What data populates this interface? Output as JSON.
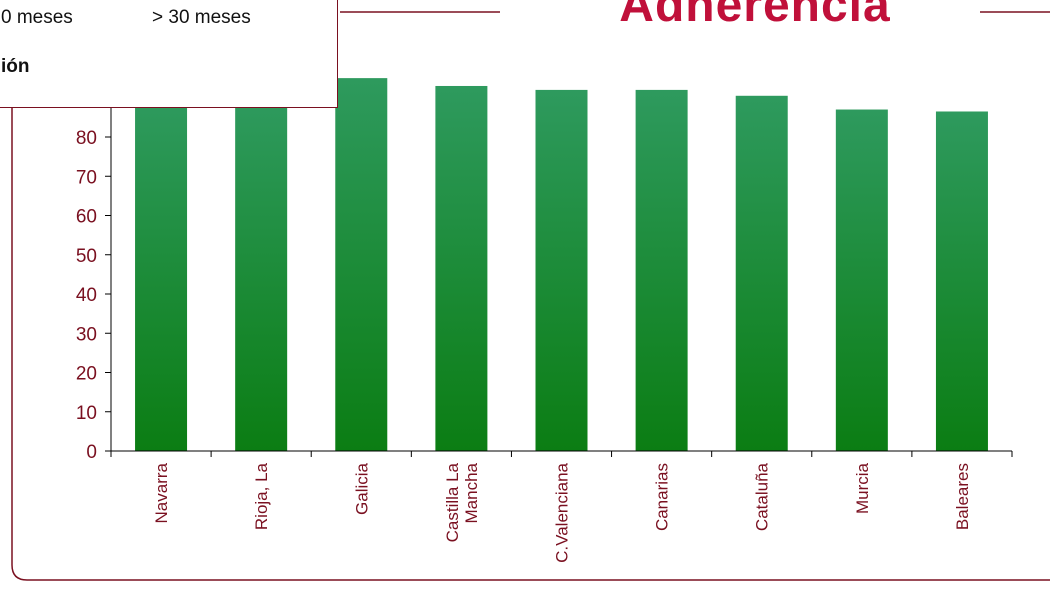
{
  "page": {
    "title": "Adherencia",
    "legend_fragment_1": "0 meses",
    "legend_fragment_2": "> 30 meses",
    "legend_fragment_3": "ión"
  },
  "colors": {
    "title": "#c0103a",
    "frame": "#7a1020",
    "axis_text": "#7a1020",
    "bar_light": "#2e9a5e",
    "bar_dark": "#0b7d13"
  },
  "chart_data": {
    "type": "bar",
    "title": "Adherencia",
    "categories": [
      "Navarra",
      "Rioja, La",
      "Galicia",
      "Castilla La Mancha",
      "C.Valenciana",
      "Canarias",
      "Cataluña",
      "Murcia",
      "Baleares"
    ],
    "category_labels": [
      [
        "Navarra"
      ],
      [
        "Rioja, La"
      ],
      [
        "Galicia"
      ],
      [
        "Castilla La",
        "Mancha"
      ],
      [
        "C.Valenciana"
      ],
      [
        "Canarias"
      ],
      [
        "Cataluña"
      ],
      [
        "Murcia"
      ],
      [
        "Baleares"
      ]
    ],
    "values": [
      89,
      89,
      95,
      93,
      92,
      92,
      90.5,
      87,
      86.5
    ],
    "y_ticks": [
      0,
      10,
      20,
      30,
      40,
      50,
      60,
      70,
      80
    ],
    "ylim": [
      0,
      100
    ],
    "xlabel": "",
    "ylabel": "",
    "grid": false,
    "legend": "top-left (partially cropped)"
  }
}
